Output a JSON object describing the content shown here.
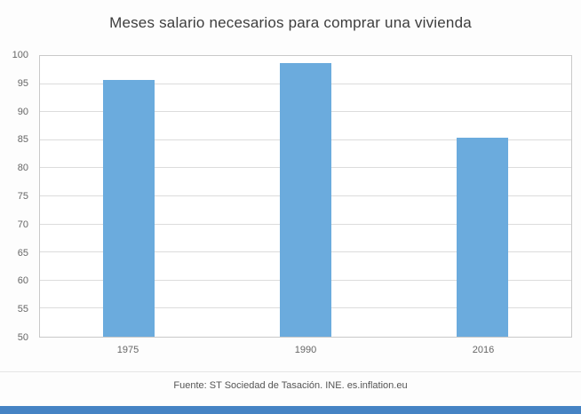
{
  "chart_data": {
    "type": "bar",
    "title": "Meses salario necesarios para comprar una vivienda",
    "categories": [
      "1975",
      "1990",
      "2016"
    ],
    "values": [
      95.8,
      98.7,
      85.5
    ],
    "ylim": [
      50,
      100
    ],
    "yticks": [
      50,
      55,
      60,
      65,
      70,
      75,
      80,
      85,
      90,
      95,
      100
    ],
    "grid": true,
    "legend": "none",
    "bar_color": "#6babdd",
    "source": "Fuente: ST Sociedad de Tasación. INE. es.inflation.eu",
    "accent_bar_color": "#4583c4"
  }
}
